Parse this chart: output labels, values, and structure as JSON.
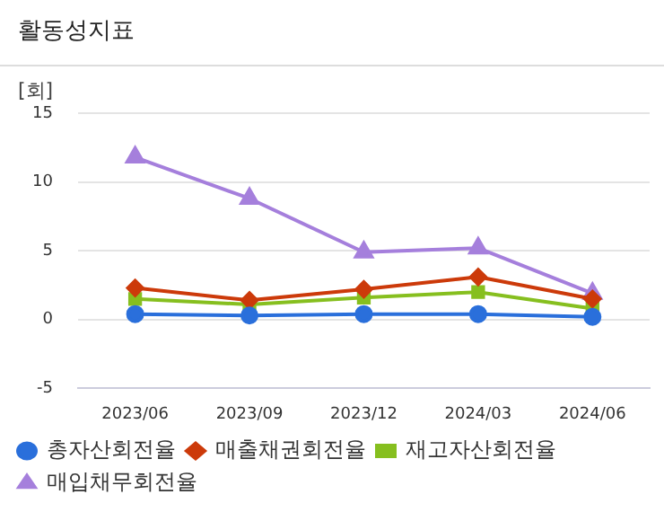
{
  "chart_data": {
    "type": "line",
    "title": "활동성지표",
    "ylabel": "[회]",
    "categories": [
      "2023/06",
      "2023/09",
      "2023/12",
      "2024/03",
      "2024/06"
    ],
    "series": [
      {
        "name": "총자산회전율",
        "color": "#2a6fdb",
        "marker": "circle",
        "values": [
          0.4,
          0.3,
          0.4,
          0.4,
          0.2
        ]
      },
      {
        "name": "매출채권회전율",
        "color": "#cc3a0a",
        "marker": "diamond",
        "values": [
          2.3,
          1.4,
          2.2,
          3.1,
          1.5
        ]
      },
      {
        "name": "재고자산회전율",
        "color": "#86bf1f",
        "marker": "square",
        "values": [
          1.5,
          1.1,
          1.6,
          2.0,
          0.8
        ]
      },
      {
        "name": "매입채무회전율",
        "color": "#a57fdc",
        "marker": "triangle",
        "values": [
          11.8,
          8.8,
          4.9,
          5.2,
          1.9
        ]
      }
    ],
    "ylim": [
      -5,
      15
    ],
    "yticks": [
      -5,
      0,
      5,
      10,
      15
    ],
    "grid": "y",
    "legend": "bottom"
  }
}
